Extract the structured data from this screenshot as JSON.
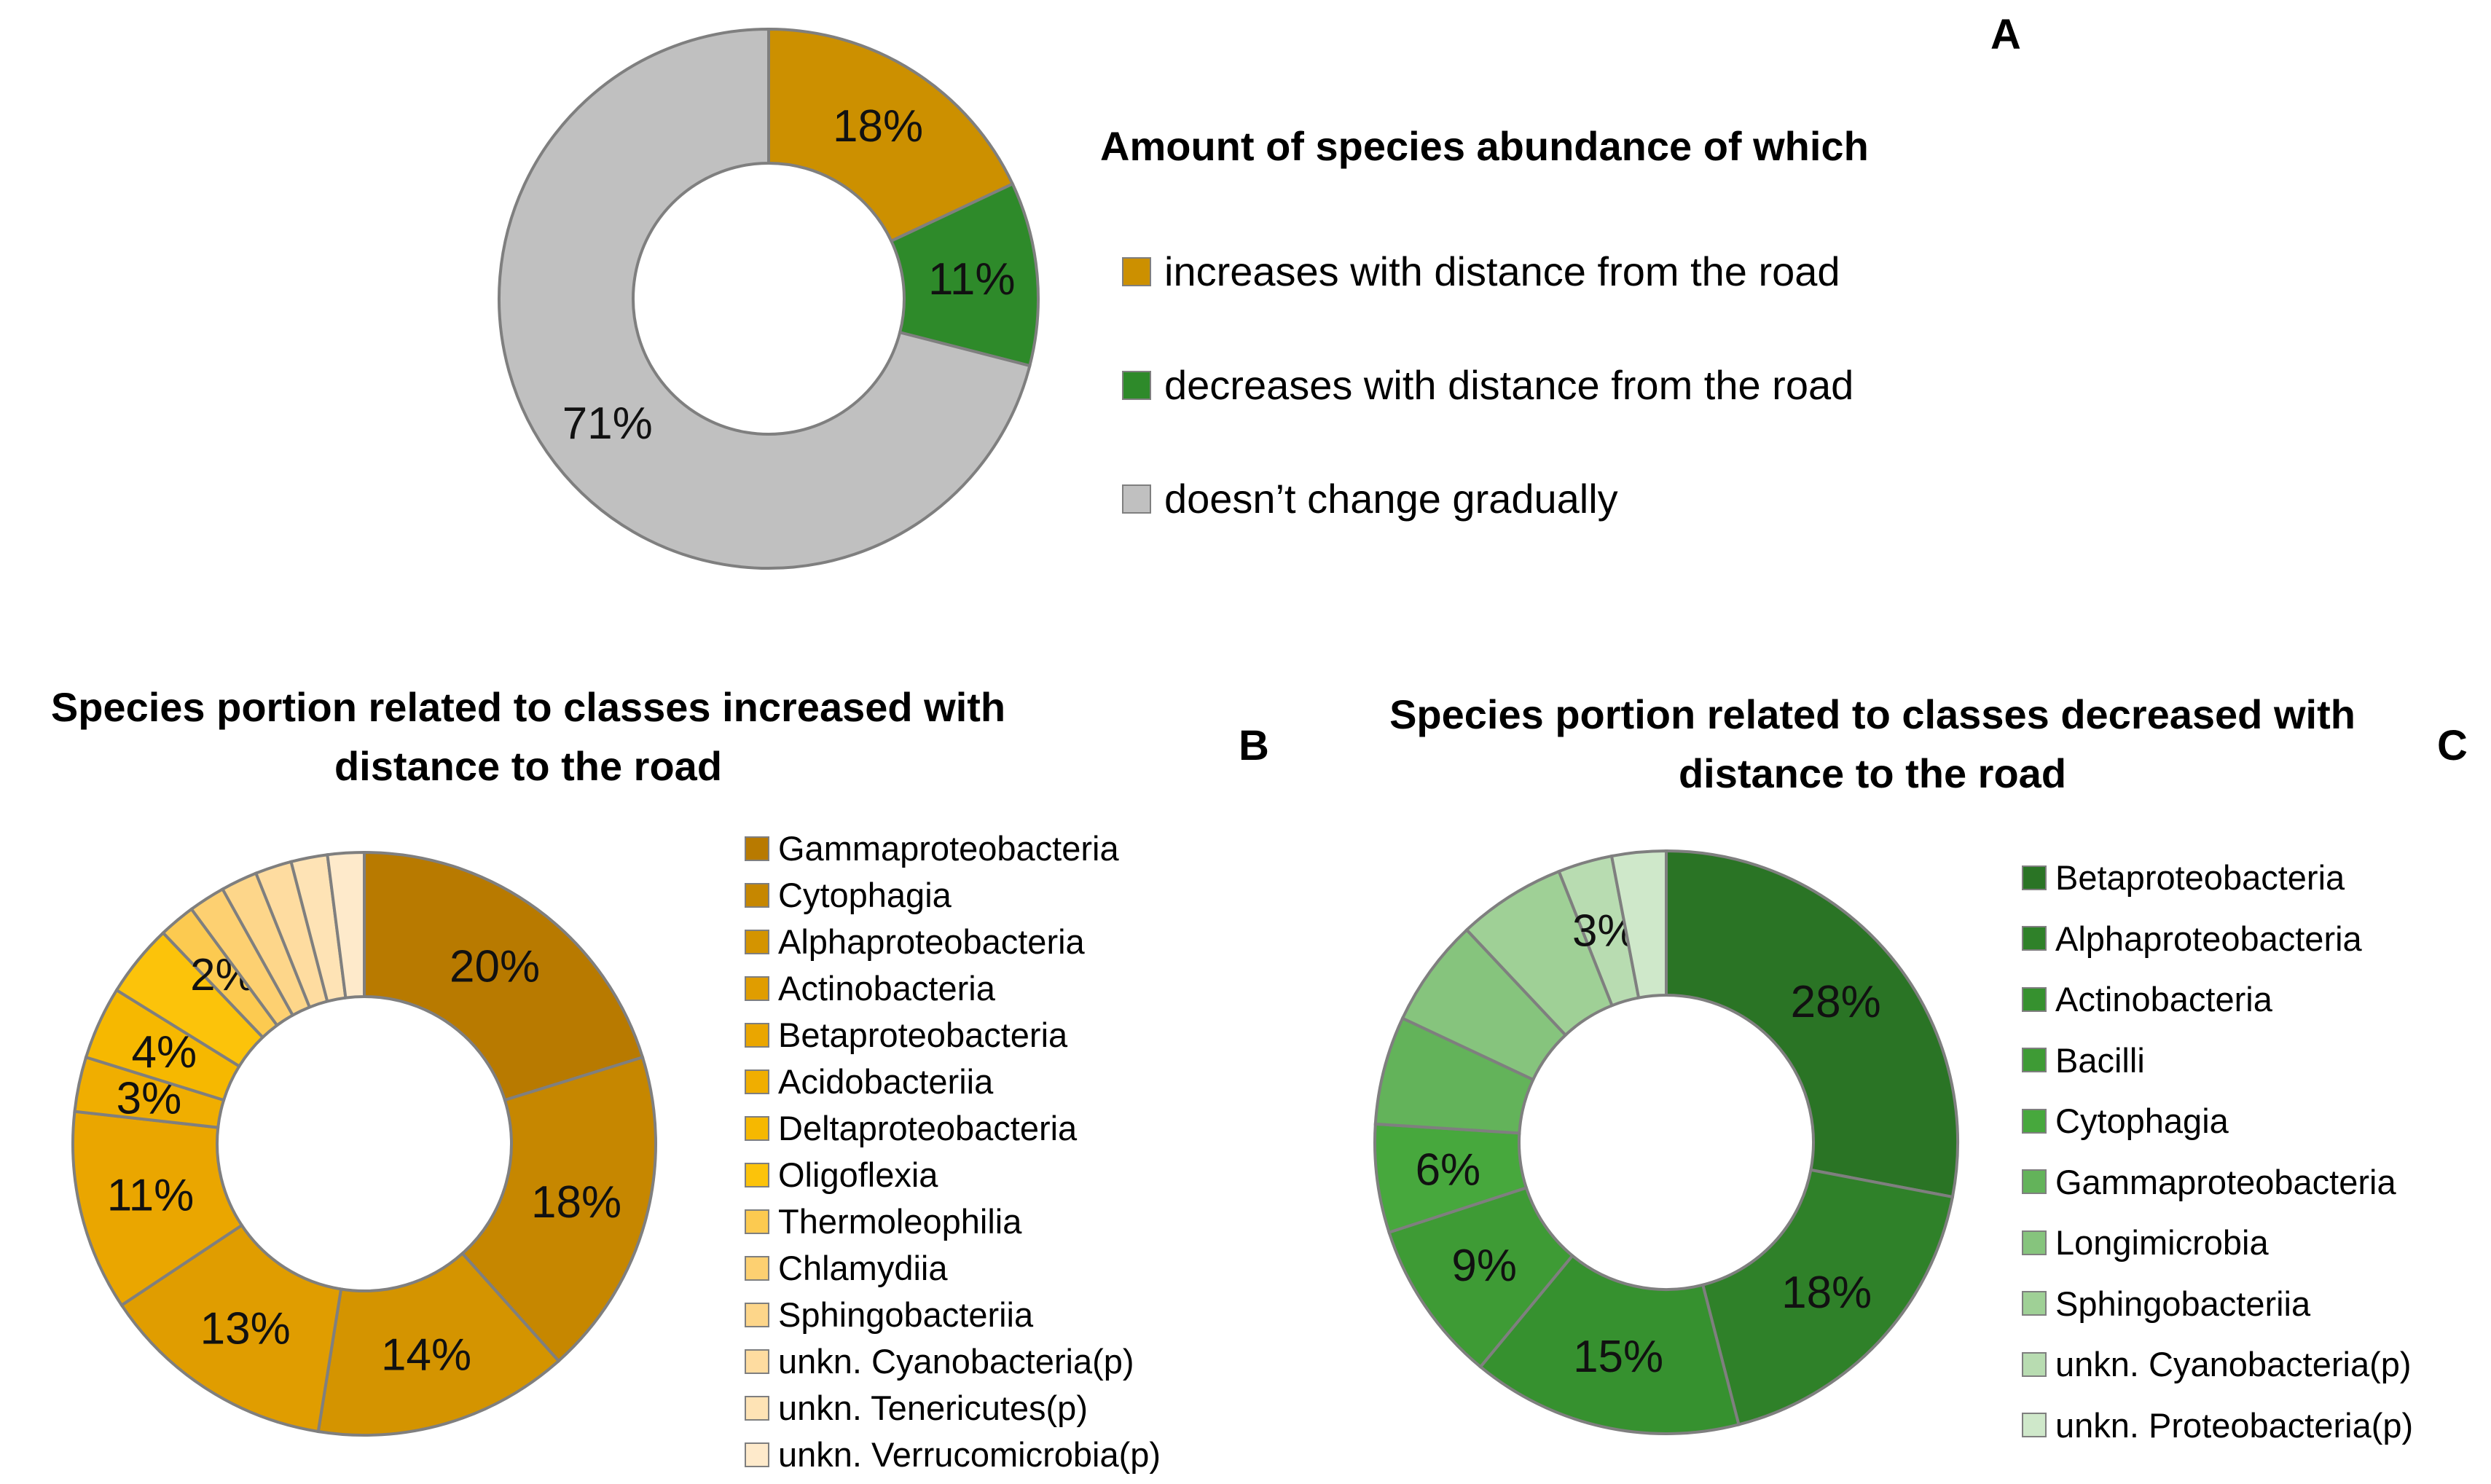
{
  "chart_data": [
    {
      "panel": "A",
      "type": "pie",
      "title": "Amount of species abundance of which",
      "categories": [
        "increases with distance from the road",
        "decreases with distance from the road",
        "doesn’t change gradually"
      ],
      "values": [
        18,
        11,
        71
      ],
      "labels": [
        "18%",
        "11%",
        "71%"
      ],
      "colors": [
        "#cc9000",
        "#2e8a2a",
        "#c0c0c0"
      ],
      "legend": "right"
    },
    {
      "panel": "B",
      "type": "pie",
      "title": "Species portion related to classes increased with distance to the road",
      "categories": [
        "Gammaproteobacteria",
        "Cytophagia",
        "Alphaproteobacteria",
        "Actinobacteria",
        "Betaproteobacteria",
        "Acidobacteriia",
        "Deltaproteobacteria",
        "Oligoflexia",
        "Thermoleophilia",
        "Chlamydiia",
        "Sphingobacteriia",
        "unkn. Cyanobacteria(p)",
        "unkn. Tenericutes(p)",
        "unkn. Verrucomicrobia(p)"
      ],
      "values": [
        20,
        18,
        14,
        13,
        11,
        3,
        4,
        4,
        2,
        2,
        2,
        2,
        2,
        2
      ],
      "labels": [
        "20%",
        "18%",
        "14%",
        "13%",
        "11%",
        "3%",
        "4%",
        "",
        "2%",
        "",
        "",
        "",
        "",
        ""
      ],
      "colors": [
        "#b87a00",
        "#c68700",
        "#d49400",
        "#e09d00",
        "#eaa600",
        "#f0ae00",
        "#f6b800",
        "#fcc30a",
        "#fcca50",
        "#fdd071",
        "#fdd68a",
        "#fedca0",
        "#fee3b5",
        "#feeacb"
      ],
      "legend": "right"
    },
    {
      "panel": "C",
      "type": "pie",
      "title": "Species portion related to classes decreased with distance to the road",
      "categories": [
        "Betaproteobacteria",
        "Alphaproteobacteria",
        "Actinobacteria",
        "Bacilli",
        "Cytophagia",
        "Gammaproteobacteria",
        "Longimicrobia",
        "Sphingobacteriia",
        "unkn. Cyanobacteria(p)",
        "unkn. Proteobacteria(p)"
      ],
      "values": [
        28,
        18,
        15,
        9,
        6,
        6,
        6,
        6,
        3,
        3
      ],
      "labels": [
        "28%",
        "18%",
        "15%",
        "9%",
        "6%",
        "",
        "",
        "",
        "3%",
        ""
      ],
      "colors": [
        "#2a7425",
        "#2f8129",
        "#36912f",
        "#3e9b35",
        "#47a83d",
        "#63b35a",
        "#86c47d",
        "#9fd096",
        "#b8dcb1",
        "#cfe8ca"
      ],
      "legend": "right"
    }
  ]
}
